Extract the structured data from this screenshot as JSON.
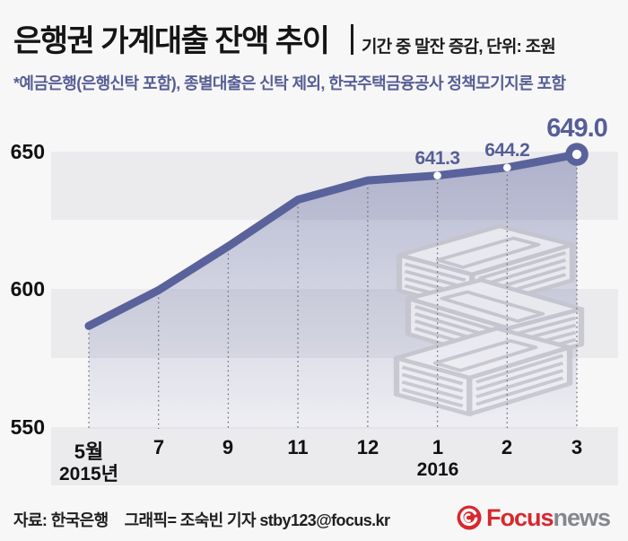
{
  "header": {
    "title": "은행권 가계대출 잔액 추이",
    "subtitle": "기간 중 말잔 증감, 단위: 조원",
    "note": "*예금은행(은행신탁 포함), 종별대출은 신탁 제외, 한국주택금융공사 정책모기지론 포함"
  },
  "chart_data": {
    "type": "line",
    "title": "은행권 가계대출 잔액 추이",
    "unit": "조원",
    "x": [
      "5월",
      "7",
      "9",
      "11",
      "12",
      "1",
      "2",
      "3"
    ],
    "x_year_labels": [
      {
        "index": 0,
        "label": "2015년"
      },
      {
        "index": 5,
        "label": "2016"
      }
    ],
    "values": [
      586.5,
      599.5,
      615.5,
      632.5,
      639.5,
      641.3,
      644.2,
      649.0
    ],
    "point_labels": [
      {
        "index": 5,
        "text": "641.3"
      },
      {
        "index": 6,
        "text": "644.2"
      },
      {
        "index": 7,
        "text": "649.0",
        "emphasis": true
      }
    ],
    "yticks": [
      550,
      600,
      650
    ],
    "ylim_visible": [
      528,
      663
    ],
    "grid": "alternating-horizontal-bands",
    "legend": "none",
    "line_color": "#5a629b",
    "point_label_color": "#565e99",
    "band_color": "#ebebee",
    "watermark": "stacked-banknote-bundles"
  },
  "footer": {
    "source": "자료: 한국은행",
    "credit": "그래픽= 조숙빈 기자 stby123@focus.kr",
    "logo": {
      "brand": "Focus",
      "suffix": "news",
      "brand_color": "#d7282f",
      "suffix_color": "#85878c"
    }
  }
}
